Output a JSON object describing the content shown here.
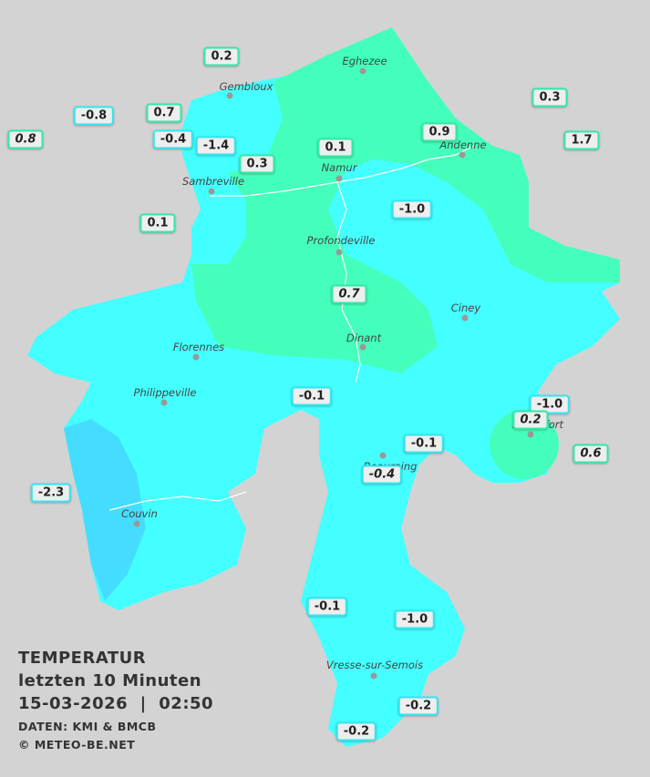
{
  "legend": {
    "title": "TEMPERATUR",
    "period": "letzten 10 Minuten",
    "timestamp": "15-03-2026  |  02:50",
    "source": "DATEN: KMI & BMCB",
    "copyright": "© METEO-BE.NET"
  },
  "cities": [
    "Eghezee",
    "Gembloux",
    "Andenne",
    "Namur",
    "Sambreville",
    "Profondeville",
    "Ciney",
    "Dinant",
    "Florennes",
    "Philippeville",
    "Rochefort",
    "Beauraing",
    "Couvin",
    "Vresse-sur-Semois"
  ],
  "stations": [
    "0.2",
    "-0.8",
    "0.7",
    "0.8",
    "-0.4",
    "-1.4",
    "0.3",
    "0.1",
    "0.9",
    "0.3",
    "1.7",
    "-1.0",
    "0.1",
    "0.7",
    "-0.1",
    "-1.0",
    "0.2",
    "-0.1",
    "0.6",
    "-0.4",
    "-2.3",
    "-0.1",
    "-1.0",
    "-0.2",
    "-0.2"
  ]
}
